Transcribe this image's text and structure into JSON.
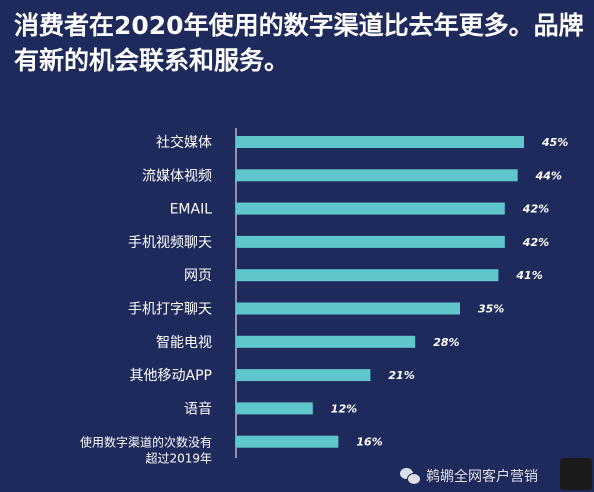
{
  "title": "消费者在2020年使用的数字渠道比去年更多。品牌有新的机会联系和服务。",
  "colors": {
    "background": "#1f2a5c",
    "bar": "#5fc7cc",
    "axis": "#ffffff",
    "text": "#ffffff"
  },
  "watermark": {
    "text": "鹈鹕全网客户营销",
    "icon": "wechat-icon"
  },
  "chart_data": {
    "type": "bar",
    "orientation": "horizontal",
    "categories": [
      "社交媒体",
      "流媒体视频",
      "EMAIL",
      "手机视频聊天",
      "网页",
      "手机打字聊天",
      "智能电视",
      "其他移动APP",
      "语音",
      "使用数字渠道的次数没有超过2019年"
    ],
    "category_lines": [
      [
        "社交媒体"
      ],
      [
        "流媒体视频"
      ],
      [
        "EMAIL"
      ],
      [
        "手机视频聊天"
      ],
      [
        "网页"
      ],
      [
        "手机打字聊天"
      ],
      [
        "智能电视"
      ],
      [
        "其他移动APP"
      ],
      [
        "语音"
      ],
      [
        "使用数字渠道的次数没有",
        "超过2019年"
      ]
    ],
    "values": [
      45,
      44,
      42,
      42,
      41,
      35,
      28,
      21,
      12,
      16
    ],
    "value_labels": [
      "45%",
      "44%",
      "42%",
      "42%",
      "41%",
      "35%",
      "28%",
      "21%",
      "12%",
      "16%"
    ],
    "unit": "%",
    "xlim": [
      0,
      50
    ]
  }
}
